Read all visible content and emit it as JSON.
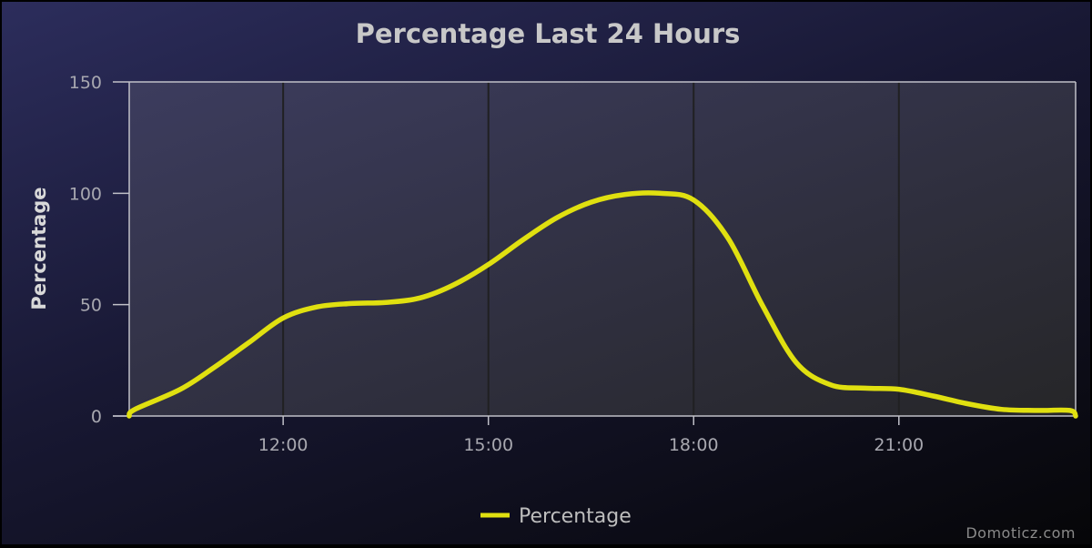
{
  "colors": {
    "series": "#e0e010",
    "axis_line": "#c0c0c8",
    "grid": "#202022"
  },
  "chart_data": {
    "type": "line",
    "title": "Percentage Last 24 Hours",
    "ylabel": "Percentage",
    "xlabel": "",
    "ylim": [
      0,
      150
    ],
    "y_ticks": [
      0,
      50,
      100,
      150
    ],
    "x_domain": [
      "09:45",
      "23:35"
    ],
    "x_ticks": [
      "12:00",
      "15:00",
      "18:00",
      "21:00"
    ],
    "legend_position": "bottom-center",
    "grid": "vertical",
    "series": [
      {
        "name": "Percentage",
        "points": [
          {
            "x": "09:45",
            "y": 0
          },
          {
            "x": "09:50",
            "y": 3
          },
          {
            "x": "10:30",
            "y": 12
          },
          {
            "x": "11:00",
            "y": 22
          },
          {
            "x": "11:30",
            "y": 33
          },
          {
            "x": "12:00",
            "y": 44
          },
          {
            "x": "12:30",
            "y": 49
          },
          {
            "x": "13:00",
            "y": 50.5
          },
          {
            "x": "13:30",
            "y": 51
          },
          {
            "x": "14:00",
            "y": 53
          },
          {
            "x": "14:30",
            "y": 59
          },
          {
            "x": "15:00",
            "y": 68
          },
          {
            "x": "15:30",
            "y": 79
          },
          {
            "x": "16:00",
            "y": 89
          },
          {
            "x": "16:30",
            "y": 96
          },
          {
            "x": "17:00",
            "y": 99.5
          },
          {
            "x": "17:30",
            "y": 100
          },
          {
            "x": "18:00",
            "y": 97
          },
          {
            "x": "18:30",
            "y": 80
          },
          {
            "x": "19:00",
            "y": 50
          },
          {
            "x": "19:30",
            "y": 24
          },
          {
            "x": "20:00",
            "y": 14
          },
          {
            "x": "20:30",
            "y": 12.5
          },
          {
            "x": "21:00",
            "y": 12
          },
          {
            "x": "21:30",
            "y": 9
          },
          {
            "x": "22:00",
            "y": 5.5
          },
          {
            "x": "22:30",
            "y": 3
          },
          {
            "x": "23:00",
            "y": 2.5
          },
          {
            "x": "23:30",
            "y": 2.5
          },
          {
            "x": "23:35",
            "y": 0
          }
        ]
      }
    ]
  },
  "credit": "Domoticz.com"
}
